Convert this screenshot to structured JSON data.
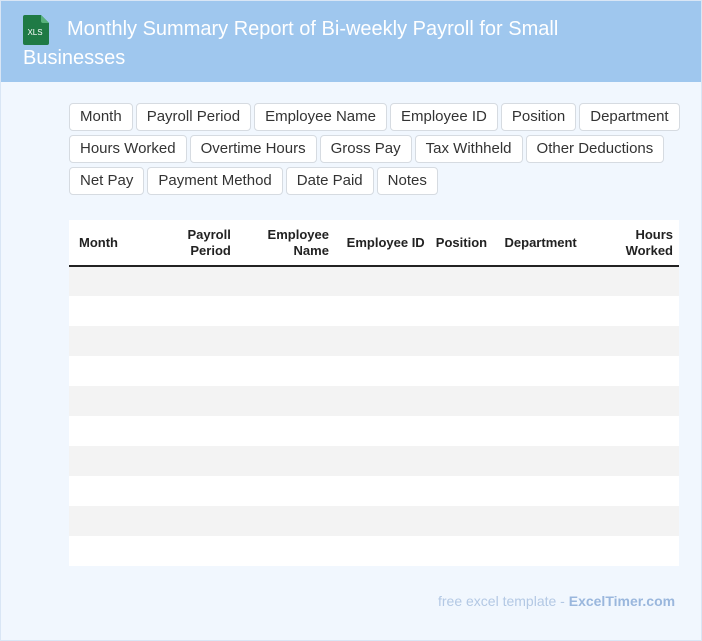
{
  "header": {
    "title": "Monthly Summary Report of Bi-weekly Payroll for Small Businesses",
    "icon_label": "XLS",
    "icon_name": "xls-file-icon",
    "background": "#9fc7ee"
  },
  "chips": [
    "Month",
    "Payroll Period",
    "Employee Name",
    "Employee ID",
    "Position",
    "Department",
    "Hours Worked",
    "Overtime Hours",
    "Gross Pay",
    "Tax Withheld",
    "Other Deductions",
    "Net Pay",
    "Payment Method",
    "Date Paid",
    "Notes"
  ],
  "table": {
    "columns": [
      {
        "label": "Month",
        "align": "l"
      },
      {
        "label": "Payroll Period",
        "align": "r"
      },
      {
        "label": "Employee Name",
        "align": "r"
      },
      {
        "label": "Employee ID",
        "align": "r"
      },
      {
        "label": "Position",
        "align": "c"
      },
      {
        "label": "Department",
        "align": "c"
      },
      {
        "label": "Hours Worked",
        "align": "r"
      }
    ],
    "rows": [
      [
        "",
        "",
        "",
        "",
        "",
        "",
        ""
      ],
      [
        "",
        "",
        "",
        "",
        "",
        "",
        ""
      ],
      [
        "",
        "",
        "",
        "",
        "",
        "",
        ""
      ],
      [
        "",
        "",
        "",
        "",
        "",
        "",
        ""
      ],
      [
        "",
        "",
        "",
        "",
        "",
        "",
        ""
      ],
      [
        "",
        "",
        "",
        "",
        "",
        "",
        ""
      ],
      [
        "",
        "",
        "",
        "",
        "",
        "",
        ""
      ],
      [
        "",
        "",
        "",
        "",
        "",
        "",
        ""
      ],
      [
        "",
        "",
        "",
        "",
        "",
        "",
        ""
      ],
      [
        "",
        "",
        "",
        "",
        "",
        "",
        ""
      ]
    ]
  },
  "footer": {
    "prefix": "free excel template - ",
    "brand": "ExcelTimer.com"
  }
}
